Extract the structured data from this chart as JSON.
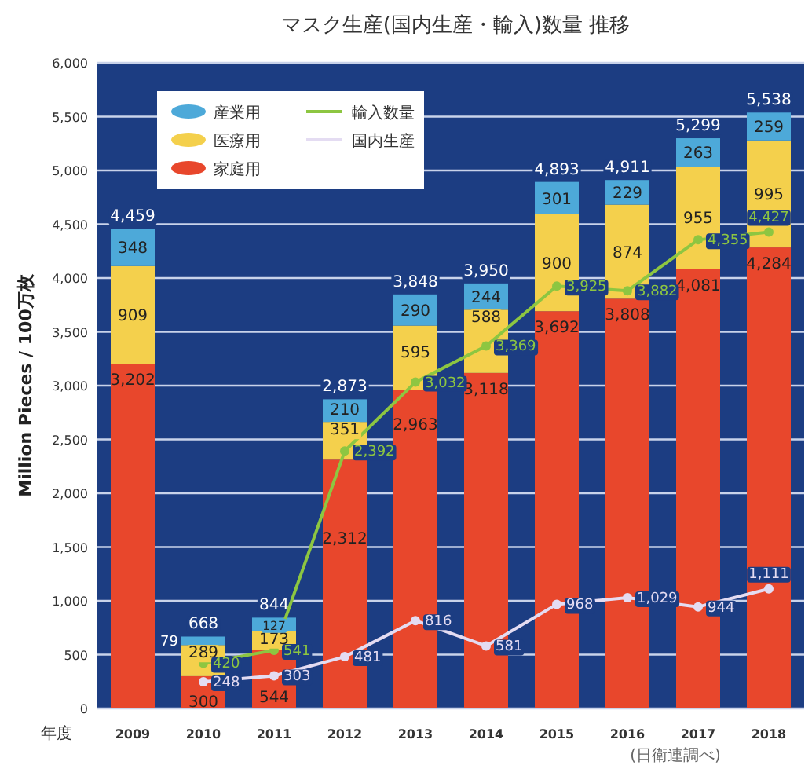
{
  "chart_data": {
    "type": "bar",
    "stacked": true,
    "title": "マスク生産(国内生産・輸入)数量 推移",
    "ylabel": "Million Pieces / 100万枚",
    "xlabel": "年度",
    "annotations": [
      "(日衛連調べ)"
    ],
    "categories": [
      "2009",
      "2010",
      "2011",
      "2012",
      "2013",
      "2014",
      "2015",
      "2016",
      "2017",
      "2018"
    ],
    "series": [
      {
        "name": "家庭用",
        "color": "#e8472c",
        "values": [
          3202,
          300,
          544,
          2312,
          2963,
          3118,
          3692,
          3808,
          4081,
          4284
        ],
        "value_labels": [
          "3,202",
          "300",
          "544",
          "2,312",
          "2,963",
          "3,118",
          "3,692",
          "3,808",
          "4,081",
          "4,284"
        ]
      },
      {
        "name": "医療用",
        "color": "#f4d04c",
        "values": [
          909,
          289,
          173,
          351,
          595,
          588,
          900,
          874,
          955,
          995
        ],
        "value_labels": [
          "909",
          "289",
          "173",
          "351",
          "595",
          "588",
          "900",
          "874",
          "955",
          "995"
        ]
      },
      {
        "name": "産業用",
        "color": "#4da9d9",
        "values": [
          348,
          79,
          127,
          210,
          290,
          244,
          301,
          229,
          263,
          259
        ],
        "value_labels": [
          "348",
          "79",
          "127",
          "210",
          "290",
          "244",
          "301",
          "229",
          "263",
          "259"
        ]
      },
      {
        "name": "輸入数量",
        "type": "line",
        "color": "#8dc641",
        "marker": "circle",
        "values": [
          null,
          420,
          541,
          2392,
          3032,
          3369,
          3925,
          3882,
          4355,
          4427
        ],
        "value_labels": [
          null,
          "420",
          "541",
          "2,392",
          "3,032",
          "3,369",
          "3,925",
          "3,882",
          "4,355",
          "4,427"
        ]
      },
      {
        "name": "国内生産",
        "type": "line",
        "color": "#e4dcf2",
        "marker": "circle",
        "values": [
          null,
          248,
          303,
          481,
          816,
          581,
          968,
          1029,
          944,
          1111
        ],
        "value_labels": [
          null,
          "248",
          "303",
          "481",
          "816",
          "581",
          "968",
          "1,029",
          "944",
          "1,111"
        ]
      }
    ],
    "totals": [
      "4,459",
      "668",
      "844",
      "2,873",
      "3,848",
      "3,950",
      "4,893",
      "4,911",
      "5,299",
      "5,538"
    ],
    "grid": "y",
    "legend": "top left",
    "ylim": [
      0,
      6000
    ],
    "yticks": [
      0,
      500,
      {
        "value": 1000,
        "label": "1,000"
      },
      {
        "value": 1500,
        "label": "1,500"
      },
      {
        "value": 2000,
        "label": "2,000"
      },
      {
        "value": 2500,
        "label": "2,500"
      },
      {
        "value": 3000,
        "label": "3,000"
      },
      {
        "value": 3500,
        "label": "3,500"
      },
      {
        "value": 4000,
        "label": "4,000"
      },
      {
        "value": 4500,
        "label": "4,500"
      },
      {
        "value": 5000,
        "label": "5,000"
      },
      {
        "value": 5500,
        "label": "5,500"
      },
      {
        "value": 6000,
        "label": "6,000"
      }
    ]
  }
}
